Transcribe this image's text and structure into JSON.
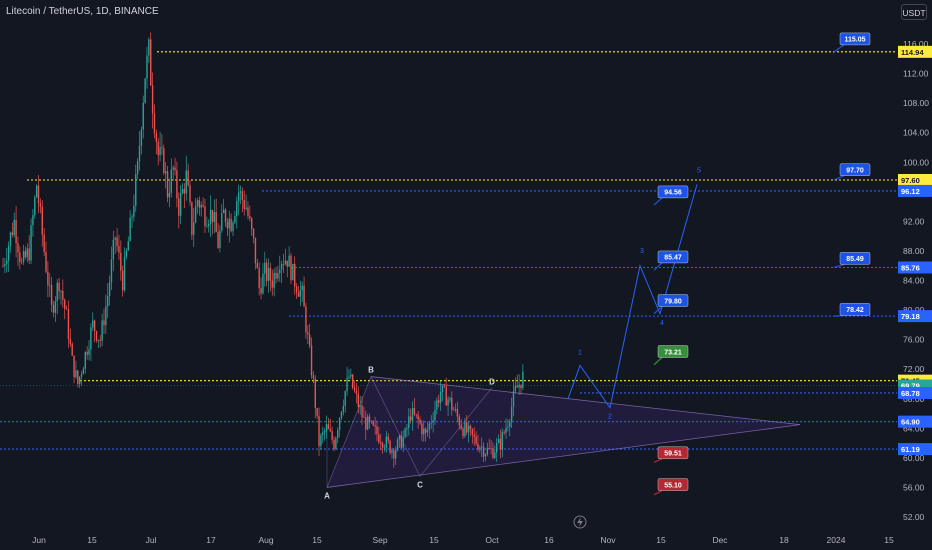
{
  "header": {
    "title": "Litecoin / TetherUS, 1D, BINANCE",
    "currency": "USDT"
  },
  "chart_data": {
    "type": "candlestick",
    "symbol": "Litecoin / TetherUS, 1D, BINANCE",
    "x_tick_labels": [
      "Jun",
      "15",
      "Jul",
      "17",
      "Aug",
      "15",
      "Sep",
      "15",
      "Oct",
      "16",
      "Nov",
      "15",
      "Dec",
      "18",
      "2024",
      "15"
    ],
    "y_ticks": [
      52,
      56,
      60,
      64,
      68,
      72,
      76,
      80,
      84,
      88,
      92,
      96,
      100,
      104,
      108,
      112,
      116
    ],
    "ylim": [
      50.5,
      118
    ],
    "price_tags": [
      {
        "value": "114.94",
        "kind": "yellow"
      },
      {
        "value": "97.60",
        "kind": "yellow"
      },
      {
        "value": "96.12",
        "kind": "blue"
      },
      {
        "value": "85.76",
        "kind": "blue"
      },
      {
        "value": "79.18",
        "kind": "blue"
      },
      {
        "value": "70.45",
        "kind": "yellow"
      },
      {
        "value": "69.79",
        "kind": "green"
      },
      {
        "value": "68.78",
        "kind": "blue"
      },
      {
        "value": "64.90",
        "kind": "blue"
      },
      {
        "value": "61.19",
        "kind": "blue"
      }
    ],
    "target_labels": [
      {
        "text": "115.05",
        "color": "#1e53e5"
      },
      {
        "text": "97.70",
        "color": "#1e53e5"
      },
      {
        "text": "94.56",
        "color": "#1e53e5"
      },
      {
        "text": "85.47",
        "color": "#1e53e5"
      },
      {
        "text": "85.49",
        "color": "#1e53e5"
      },
      {
        "text": "79.80",
        "color": "#1e53e5"
      },
      {
        "text": "78.42",
        "color": "#1e53e5"
      },
      {
        "text": "73.21",
        "color": "#388e3c"
      },
      {
        "text": "59.51",
        "color": "#b22833"
      },
      {
        "text": "55.10",
        "color": "#b22833"
      }
    ],
    "pattern_points": [
      {
        "label": "A",
        "price": 56.0
      },
      {
        "label": "B",
        "price": 71.0
      },
      {
        "label": "C",
        "price": 57.0
      },
      {
        "label": "D",
        "price": 69.5
      }
    ],
    "wave_labels": [
      "1",
      "2",
      "3",
      "4",
      "5"
    ],
    "colors": {
      "up": "#26a69a",
      "down": "#ef5350",
      "wave": "#2962ff",
      "level_yellow": "#ffeb3b",
      "level_blue": "#2962ff"
    }
  }
}
